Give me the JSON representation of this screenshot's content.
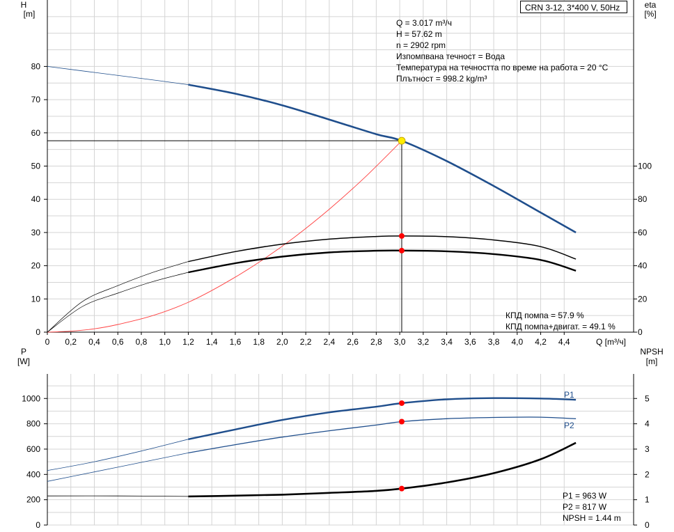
{
  "model_title": "CRN 3-12, 3*400 V, 50Hz",
  "colors": {
    "blue": "#1f4e8c",
    "red_curve": "#ff4040",
    "red_point": "#ff0000",
    "operating_point": "#ffee00",
    "grid": "#d4d4d4"
  },
  "info_top": [
    "Q = 3.017 m³/ч",
    "H = 57.62 m",
    "n = 2902 rpm",
    "Изпомпвана течност = Вода",
    "Температура на течността по време на работа = 20 °C",
    "Плътност = 998.2 kg/m³"
  ],
  "info_eff": [
    "КПД помпа = 57.9 %",
    "КПД помпа+двигат. = 49.1 %"
  ],
  "info_bottom": [
    "P1 = 963 W",
    "P2 = 817 W",
    "NPSH = 1.44 m"
  ],
  "axes": {
    "h_label": "H",
    "h_unit": "[m]",
    "eta_label": "eta",
    "eta_unit": "[%]",
    "p_label": "P",
    "p_unit": "[W]",
    "npsh_label": "NPSH",
    "npsh_unit": "[m]",
    "q_label": "Q [m³/ч]"
  },
  "chart_data": [
    {
      "type": "line",
      "title": "",
      "xlabel": "Q [m³/ч]",
      "ylabel": "H [m]",
      "y2label": "eta [%]",
      "xlim": [
        0,
        4.6
      ],
      "ylim": [
        0,
        90
      ],
      "y2lim": [
        0,
        180
      ],
      "x_ticks": [
        "0",
        "0,2",
        "0,4",
        "0,6",
        "0,8",
        "1,0",
        "1,2",
        "1,4",
        "1,6",
        "1,8",
        "2,0",
        "2,2",
        "2,4",
        "2,6",
        "2,8",
        "3,0",
        "3,2",
        "3,4",
        "3,6",
        "3,8",
        "4,0",
        "4,2",
        "4,4"
      ],
      "y_ticks": [
        0,
        10,
        20,
        30,
        40,
        50,
        60,
        70,
        80
      ],
      "y2_ticks": [
        0,
        20,
        40,
        60,
        80,
        100
      ],
      "grid": true,
      "series": [
        {
          "role": "head",
          "axis": "left",
          "x": [
            0,
            0.4,
            0.8,
            1.2,
            1.6,
            2.0,
            2.4,
            2.8,
            3.017,
            3.4,
            3.8,
            4.2,
            4.5
          ],
          "y": [
            80,
            78.2,
            76.4,
            74.5,
            71.8,
            68.3,
            64.0,
            59.6,
            57.62,
            51.5,
            44.0,
            36.0,
            30.0
          ]
        },
        {
          "role": "pump_efficiency",
          "axis": "right",
          "x": [
            0,
            0.3,
            0.6,
            0.9,
            1.2,
            1.6,
            2.0,
            2.4,
            2.8,
            3.017,
            3.4,
            3.8,
            4.2,
            4.5
          ],
          "y": [
            0,
            18.5,
            28,
            36,
            42.5,
            48.5,
            53,
            56,
            57.6,
            57.9,
            57.5,
            55.5,
            51.5,
            44
          ]
        },
        {
          "role": "total_efficiency",
          "axis": "right",
          "x": [
            0,
            0.3,
            0.6,
            0.9,
            1.2,
            1.6,
            2.0,
            2.4,
            2.8,
            3.017,
            3.4,
            3.8,
            4.2,
            4.5
          ],
          "y": [
            0,
            15.5,
            23.5,
            30.5,
            36,
            41.5,
            45.5,
            48,
            49,
            49.1,
            48.7,
            47,
            43.5,
            37
          ]
        },
        {
          "role": "system_curve",
          "axis": "left",
          "x": [
            0,
            0.2,
            0.4,
            0.6,
            0.9,
            1.2,
            1.5,
            1.8,
            2.1,
            2.4,
            2.7,
            3.017
          ],
          "y": [
            0,
            0.3,
            1.0,
            2.3,
            5.0,
            9.0,
            14.5,
            21.0,
            28.5,
            37.0,
            46.5,
            57.62
          ]
        }
      ],
      "operating_point": {
        "x": 3.017,
        "y": 57.62
      },
      "efficiency_points": [
        {
          "x": 3.017,
          "y2": 57.9
        },
        {
          "x": 3.017,
          "y2": 49.1
        }
      ]
    },
    {
      "type": "line",
      "title": "",
      "xlabel": "",
      "ylabel": "P [W]",
      "y2label": "NPSH [m]",
      "xlim": [
        0,
        4.6
      ],
      "ylim": [
        0,
        1200
      ],
      "y2lim": [
        0,
        6
      ],
      "y_ticks": [
        0,
        200,
        400,
        600,
        800,
        1000
      ],
      "y2_ticks": [
        0,
        1,
        2,
        3,
        4,
        5
      ],
      "grid": true,
      "series": [
        {
          "name": "P1",
          "axis": "left",
          "x": [
            0,
            0.4,
            0.8,
            1.2,
            1.6,
            2.0,
            2.4,
            2.8,
            3.017,
            3.4,
            3.8,
            4.2,
            4.5
          ],
          "y": [
            430,
            500,
            585,
            678,
            755,
            830,
            890,
            935,
            963,
            993,
            1003,
            1000,
            990
          ]
        },
        {
          "name": "P2",
          "axis": "left",
          "x": [
            0,
            0.4,
            0.8,
            1.2,
            1.6,
            2.0,
            2.4,
            2.8,
            3.017,
            3.4,
            3.8,
            4.2,
            4.5
          ],
          "y": [
            345,
            420,
            495,
            570,
            635,
            695,
            745,
            790,
            817,
            840,
            850,
            852,
            840
          ]
        },
        {
          "role": "npsh",
          "axis": "right",
          "x": [
            0,
            0.6,
            1.2,
            1.6,
            2.0,
            2.4,
            2.8,
            3.017,
            3.4,
            3.8,
            4.2,
            4.5
          ],
          "y": [
            1.15,
            1.15,
            1.13,
            1.16,
            1.2,
            1.27,
            1.35,
            1.44,
            1.68,
            2.05,
            2.6,
            3.25
          ]
        }
      ],
      "duty_points": [
        {
          "x": 3.017,
          "y": 963
        },
        {
          "x": 3.017,
          "y": 817
        },
        {
          "x": 3.017,
          "y2": 1.44
        }
      ]
    }
  ]
}
